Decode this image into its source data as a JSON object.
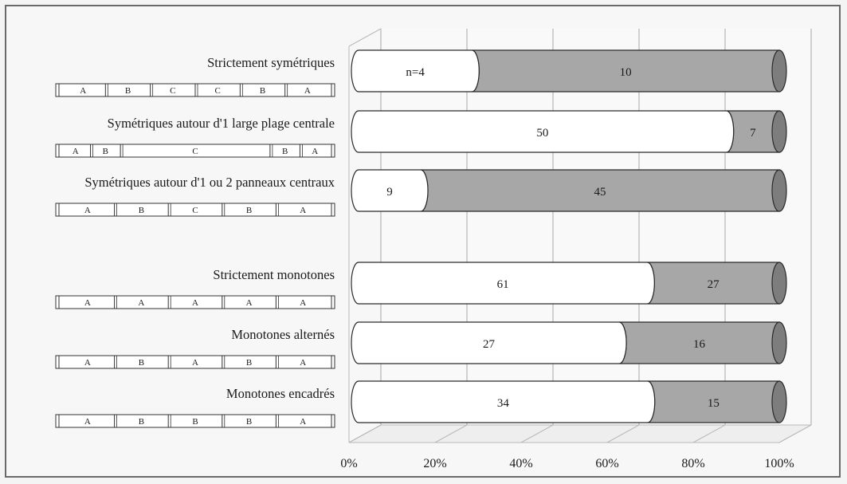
{
  "colors": {
    "front_segment": "#ffffff",
    "back_segment": "#a7a7a7",
    "back_cap": "#7d7d7d",
    "grid": "#b9b9b9",
    "outline": "#2a2a2a"
  },
  "chart_data": {
    "type": "bar",
    "orientation": "horizontal",
    "stacked": true,
    "normalized_percent": true,
    "style": "3d-cylinder",
    "xlim": [
      0,
      100
    ],
    "ticks": [
      "0%",
      "20%",
      "40%",
      "60%",
      "80%",
      "100%"
    ],
    "grid": true,
    "categories": [
      {
        "label": "Strictement symétriques",
        "schema": [
          "A",
          "B",
          "C",
          "C",
          "B",
          "A"
        ],
        "values": [
          4,
          10
        ],
        "value_labels": [
          "n=4",
          "10"
        ]
      },
      {
        "label": "Symétriques autour d'1 large plage centrale",
        "schema": [
          "A",
          "B",
          "C",
          "B",
          "A"
        ],
        "values": [
          50,
          7
        ],
        "value_labels": [
          "50",
          "7"
        ]
      },
      {
        "label": "Symétriques autour d'1 ou 2 panneaux centraux",
        "schema": [
          "A",
          "B",
          "C",
          "B",
          "A"
        ],
        "values": [
          9,
          45
        ],
        "value_labels": [
          "9",
          "45"
        ]
      },
      {
        "label": "Strictement monotones",
        "schema": [
          "A",
          "A",
          "A",
          "A",
          "A"
        ],
        "values": [
          61,
          27
        ],
        "value_labels": [
          "61",
          "27"
        ]
      },
      {
        "label": "Monotones alternés",
        "schema": [
          "A",
          "B",
          "A",
          "B",
          "A"
        ],
        "values": [
          27,
          16
        ],
        "value_labels": [
          "27",
          "16"
        ]
      },
      {
        "label": "Monotones encadrés",
        "schema": [
          "A",
          "B",
          "B",
          "B",
          "A"
        ],
        "values": [
          34,
          15
        ],
        "value_labels": [
          "34",
          "15"
        ]
      }
    ]
  }
}
